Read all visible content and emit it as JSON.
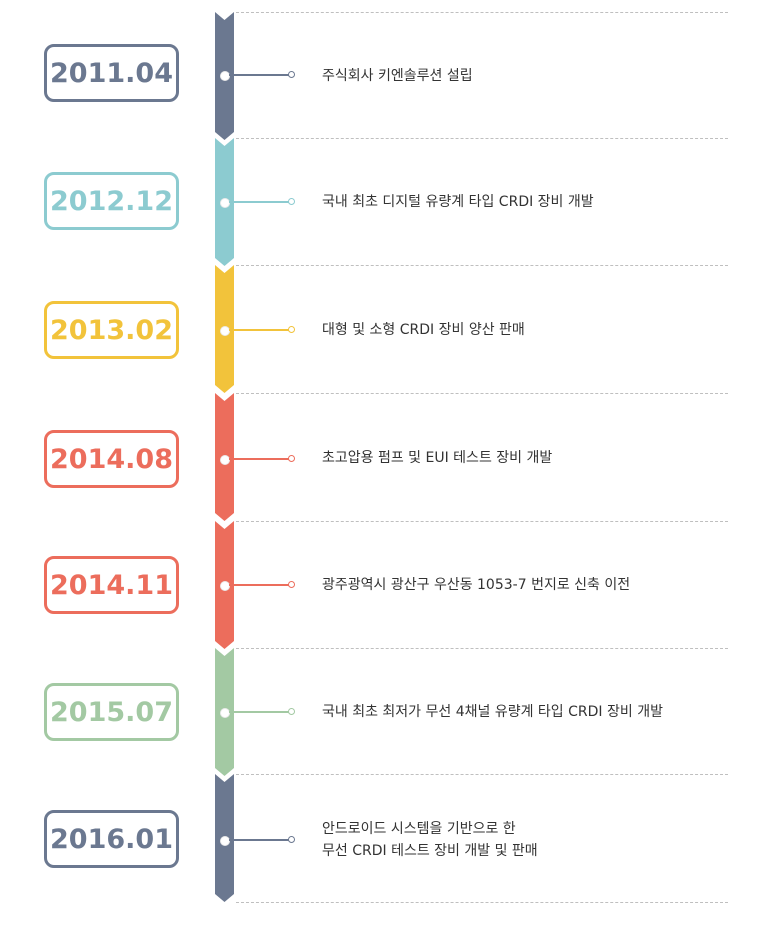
{
  "timeline": {
    "events": [
      {
        "date": "2011.04",
        "lines": [
          "주식회사 키엔솔루션 설립"
        ],
        "color": "#6b7890"
      },
      {
        "date": "2012.12",
        "lines": [
          "국내 최초 디지털 유량계 타입 CRDI 장비 개발"
        ],
        "color": "#8ccbd0"
      },
      {
        "date": "2013.02",
        "lines": [
          "대형 및 소형 CRDI 장비 양산 판매"
        ],
        "color": "#f2c33b"
      },
      {
        "date": "2014.08",
        "lines": [
          "초고압용 펌프 및 EUI 테스트 장비 개발"
        ],
        "color": "#ec6d5c"
      },
      {
        "date": "2014.11",
        "lines": [
          "광주광역시 광산구 우산동 1053-7 번지로 신축 이전"
        ],
        "color": "#ec6d5c"
      },
      {
        "date": "2015.07",
        "lines": [
          "국내 최초 최저가 무선 4채널 유량계 타입 CRDI 장비 개발"
        ],
        "color": "#a3c9a3"
      },
      {
        "date": "2016.01",
        "lines": [
          "안드로이드 시스템을 기반으로 한",
          "무선 CRDI 테스트 장비 개발 및 판매"
        ],
        "color": "#6b7890"
      }
    ]
  }
}
